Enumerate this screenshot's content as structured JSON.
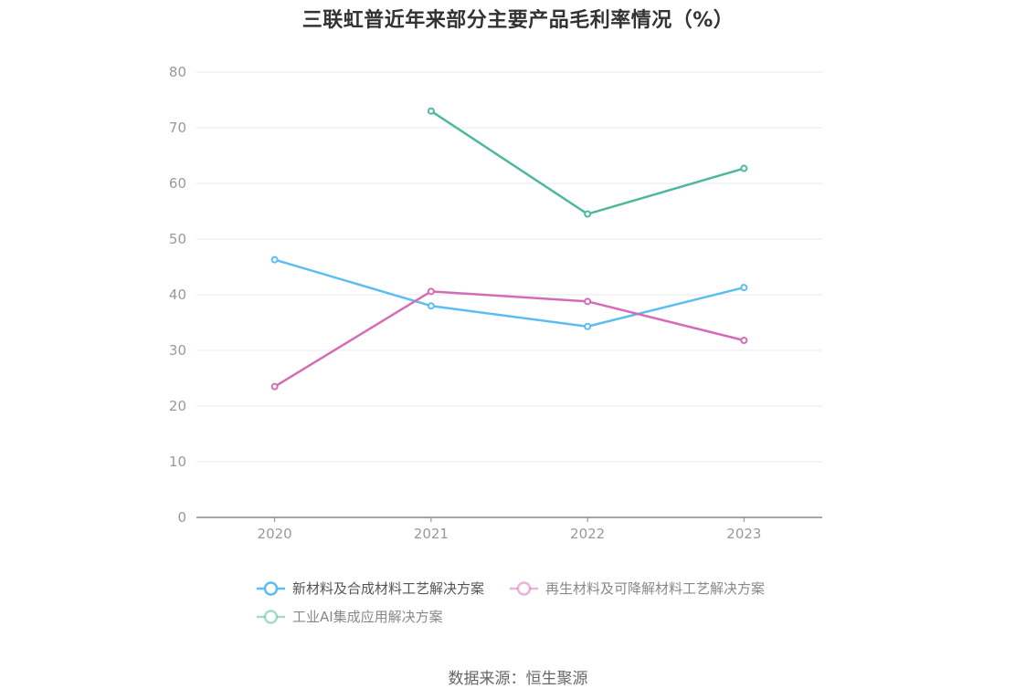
{
  "chart_data": {
    "type": "line",
    "title": "三联虹普近年来部分主要产品毛利率情况（%）",
    "categories": [
      "2020",
      "2021",
      "2022",
      "2023"
    ],
    "ylim": [
      0,
      80
    ],
    "yticks": [
      0,
      10,
      20,
      30,
      40,
      50,
      60,
      70,
      80
    ],
    "grid": true,
    "legend_position": "bottom",
    "series": [
      {
        "name": "新材料及合成材料工艺解决方案",
        "color": "#5bbdf0",
        "values": [
          46.3,
          38.0,
          34.3,
          41.3
        ]
      },
      {
        "name": "再生材料及可降解材料工艺解决方案",
        "color": "#d46cb5",
        "values": [
          23.5,
          40.6,
          38.8,
          31.8
        ]
      },
      {
        "name": "工业AI集成应用解决方案",
        "color": "#4db89e",
        "values": [
          null,
          73.0,
          54.5,
          62.7
        ]
      }
    ]
  },
  "source": "数据来源：恒生聚源"
}
